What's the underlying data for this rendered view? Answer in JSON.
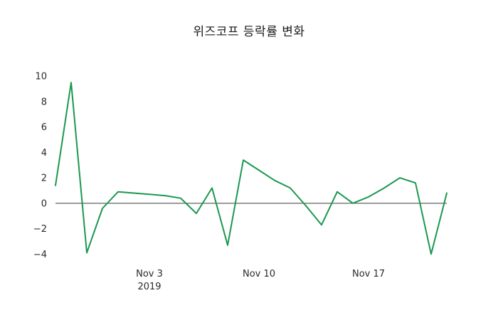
{
  "chart_data": {
    "type": "line",
    "title": "위즈코프 등락률 변화",
    "series_name": "등락률",
    "line_color": "#1a9850",
    "zero_line_color": "#3a3a3a",
    "x": [
      "2019-10-28",
      "2019-10-29",
      "2019-10-30",
      "2019-10-31",
      "2019-11-01",
      "2019-11-02",
      "2019-11-03",
      "2019-11-04",
      "2019-11-05",
      "2019-11-06",
      "2019-11-07",
      "2019-11-08",
      "2019-11-09",
      "2019-11-10",
      "2019-11-11",
      "2019-11-12",
      "2019-11-13",
      "2019-11-14",
      "2019-11-15",
      "2019-11-16",
      "2019-11-17",
      "2019-11-18",
      "2019-11-19",
      "2019-11-20",
      "2019-11-21",
      "2019-11-22"
    ],
    "values": [
      1.4,
      9.5,
      -3.9,
      -0.4,
      0.9,
      0.8,
      0.7,
      0.6,
      0.4,
      -0.8,
      1.2,
      -3.3,
      3.4,
      2.6,
      1.8,
      1.2,
      -0.2,
      -1.7,
      0.9,
      0.0,
      0.5,
      1.2,
      2.0,
      1.6,
      -4.0,
      0.8
    ],
    "ylim": [
      -4.6,
      10.4
    ],
    "yticks": [
      -4,
      -2,
      0,
      2,
      4,
      6,
      8,
      10
    ],
    "xticks": [
      {
        "index": 6,
        "label": "Nov 3",
        "sublabel": "2019"
      },
      {
        "index": 13,
        "label": "Nov 10",
        "sublabel": ""
      },
      {
        "index": 20,
        "label": "Nov 17",
        "sublabel": ""
      }
    ],
    "grid": false,
    "legend": "none",
    "background": "#ffffff"
  }
}
